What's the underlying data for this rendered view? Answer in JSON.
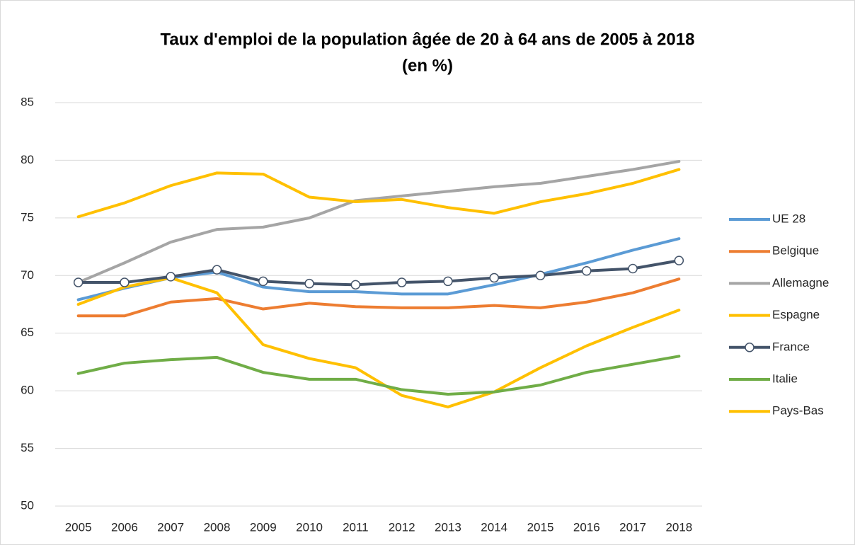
{
  "chart_data": {
    "type": "line",
    "title": "Taux d'emploi de la population âgée de 20 à 64 ans de 2005 à 2018",
    "subtitle": "(en %)",
    "categories": [
      "2005",
      "2006",
      "2007",
      "2008",
      "2009",
      "2010",
      "2011",
      "2012",
      "2013",
      "2014",
      "2015",
      "2016",
      "2017",
      "2018"
    ],
    "series": [
      {
        "name": "UE 28",
        "color": "#5b9bd5",
        "values": [
          67.9,
          68.9,
          69.8,
          70.3,
          69.0,
          68.6,
          68.6,
          68.4,
          68.4,
          69.2,
          70.1,
          71.1,
          72.2,
          73.2
        ]
      },
      {
        "name": "Belgique",
        "color": "#ed7d31",
        "values": [
          66.5,
          66.5,
          67.7,
          68.0,
          67.1,
          67.6,
          67.3,
          67.2,
          67.2,
          67.4,
          67.2,
          67.7,
          68.5,
          69.7
        ]
      },
      {
        "name": "Allemagne",
        "color": "#a5a5a5",
        "values": [
          69.4,
          71.1,
          72.9,
          74.0,
          74.2,
          75.0,
          76.5,
          76.9,
          77.3,
          77.7,
          78.0,
          78.6,
          79.2,
          79.9
        ]
      },
      {
        "name": "Espagne",
        "color": "#ffc000",
        "values": [
          67.5,
          69.0,
          69.8,
          68.5,
          64.0,
          62.8,
          62.0,
          59.6,
          58.6,
          59.9,
          62.0,
          63.9,
          65.5,
          67.0
        ]
      },
      {
        "name": "France",
        "color": "#44546a",
        "marker": true,
        "values": [
          69.4,
          69.4,
          69.9,
          70.5,
          69.5,
          69.3,
          69.2,
          69.4,
          69.5,
          69.8,
          70.0,
          70.4,
          70.6,
          71.3
        ]
      },
      {
        "name": "Italie",
        "color": "#70ad47",
        "values": [
          61.5,
          62.4,
          62.7,
          62.9,
          61.6,
          61.0,
          61.0,
          60.1,
          59.7,
          59.9,
          60.5,
          61.6,
          62.3,
          63.0
        ]
      },
      {
        "name": "Pays-Bas",
        "color": "#ffc000",
        "values": [
          75.1,
          76.3,
          77.8,
          78.9,
          78.8,
          76.8,
          76.4,
          76.6,
          75.9,
          75.4,
          76.4,
          77.1,
          78.0,
          79.2
        ]
      }
    ],
    "ylim": [
      50,
      85
    ],
    "yticks": [
      50,
      55,
      60,
      65,
      70,
      75,
      80,
      85
    ],
    "grid": true,
    "legend": "right"
  }
}
